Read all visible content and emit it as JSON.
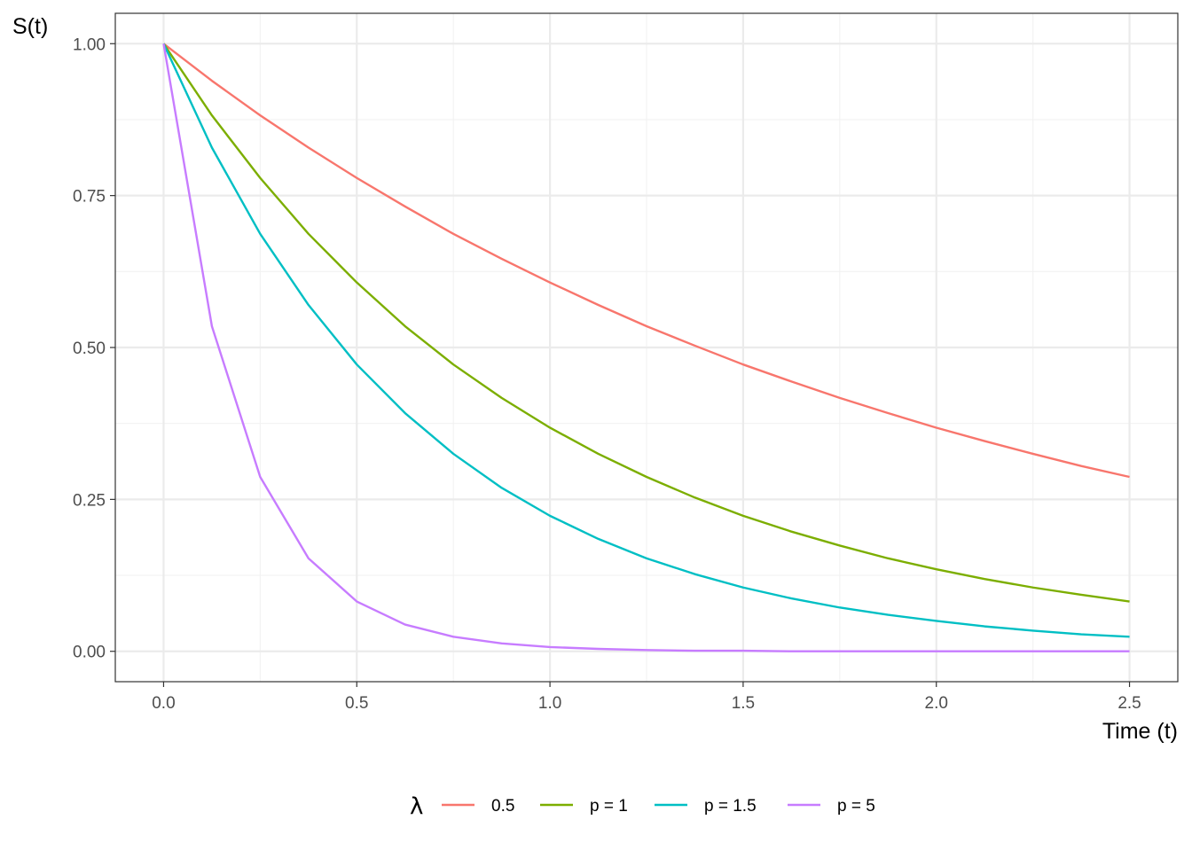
{
  "chart_data": {
    "type": "line",
    "xlabel": "Time (t)",
    "ylabel": "S(t)",
    "xlim": [
      -0.125,
      2.625
    ],
    "ylim": [
      -0.05,
      1.05
    ],
    "x_ticks": [
      0.0,
      0.5,
      1.0,
      1.5,
      2.0,
      2.5
    ],
    "x_tick_labels": [
      "0.0",
      "0.5",
      "1.0",
      "1.5",
      "2.0",
      "2.5"
    ],
    "y_ticks": [
      0.0,
      0.25,
      0.5,
      0.75,
      1.0
    ],
    "y_tick_labels": [
      "0.00",
      "0.25",
      "0.50",
      "0.75",
      "1.00"
    ],
    "grid": true,
    "legend_position": "bottom",
    "legend_title": "λ",
    "x": [
      0,
      0.125,
      0.25,
      0.375,
      0.5,
      0.625,
      0.75,
      0.875,
      1.0,
      1.125,
      1.25,
      1.375,
      1.5,
      1.625,
      1.75,
      1.875,
      2.0,
      2.125,
      2.25,
      2.375,
      2.5
    ],
    "series": [
      {
        "name": "0.5",
        "color": "#F8766D",
        "values": [
          1.0,
          0.939,
          0.882,
          0.829,
          0.779,
          0.732,
          0.687,
          0.646,
          0.607,
          0.57,
          0.535,
          0.503,
          0.472,
          0.444,
          0.417,
          0.392,
          0.368,
          0.346,
          0.325,
          0.305,
          0.287
        ]
      },
      {
        "name": "p = 1",
        "color": "#7CAE00",
        "values": [
          1.0,
          0.882,
          0.779,
          0.687,
          0.607,
          0.535,
          0.472,
          0.417,
          0.368,
          0.325,
          0.287,
          0.253,
          0.223,
          0.197,
          0.174,
          0.153,
          0.135,
          0.119,
          0.105,
          0.093,
          0.082
        ]
      },
      {
        "name": "p = 1.5",
        "color": "#00BFC4",
        "values": [
          1.0,
          0.829,
          0.687,
          0.57,
          0.472,
          0.392,
          0.325,
          0.269,
          0.223,
          0.185,
          0.153,
          0.127,
          0.105,
          0.087,
          0.072,
          0.06,
          0.05,
          0.041,
          0.034,
          0.028,
          0.024
        ]
      },
      {
        "name": "p = 5",
        "color": "#C77CFF",
        "values": [
          1.0,
          0.535,
          0.287,
          0.153,
          0.082,
          0.044,
          0.024,
          0.013,
          0.007,
          0.004,
          0.002,
          0.001,
          0.001,
          0.0,
          0.0,
          0.0,
          0.0,
          0.0,
          0.0,
          0.0,
          0.0
        ]
      }
    ]
  }
}
